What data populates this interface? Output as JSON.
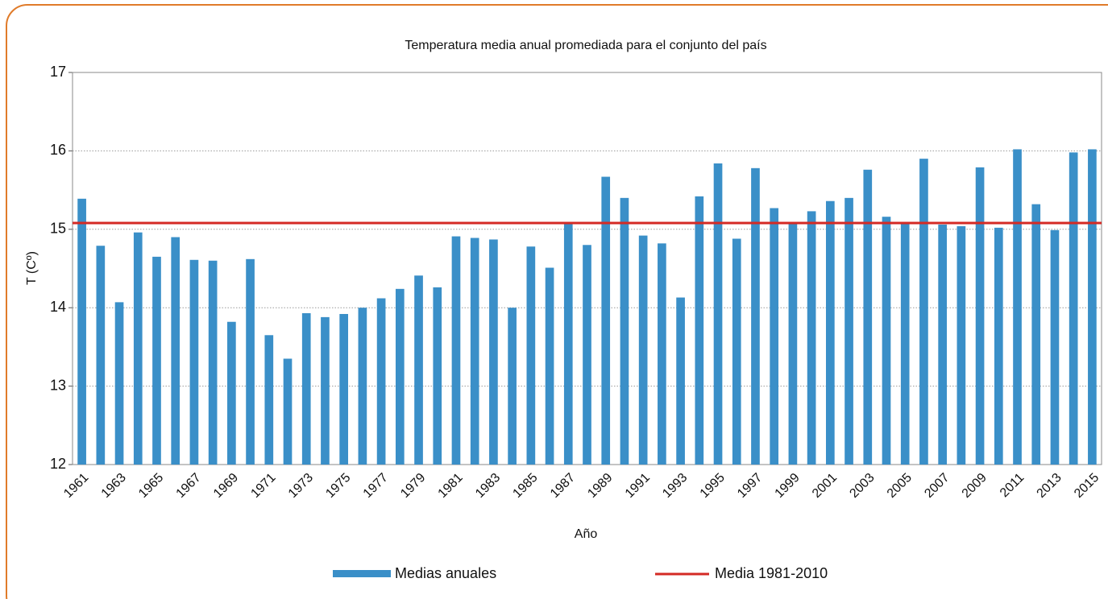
{
  "chart_data": {
    "type": "bar",
    "title": "Temperatura media anual promediada para el conjunto del país",
    "x_label": "Año",
    "y_label": "T (Cº)",
    "categories": [
      "1961",
      null,
      "1963",
      null,
      "1965",
      null,
      "1967",
      null,
      "1969",
      null,
      "1971",
      null,
      "1973",
      null,
      "1975",
      null,
      "1977",
      null,
      "1979",
      null,
      "1981",
      null,
      "1983",
      null,
      "1985",
      null,
      "1987",
      null,
      "1989",
      null,
      "1991",
      null,
      "1993",
      null,
      "1995",
      null,
      "1997",
      null,
      "1999",
      null,
      "2001",
      null,
      "2003",
      null,
      "2005",
      null,
      "2007",
      null,
      "2009",
      null,
      "2011",
      null,
      "2013",
      null,
      "2015"
    ],
    "series": [
      {
        "name": "Medias anuales",
        "color": "#3a8fc8",
        "values": [
          15.39,
          14.79,
          14.07,
          14.96,
          14.65,
          14.9,
          14.61,
          14.6,
          13.82,
          14.62,
          13.65,
          13.35,
          13.93,
          13.88,
          13.92,
          14.0,
          14.12,
          14.24,
          14.41,
          14.26,
          14.91,
          14.89,
          14.87,
          14.0,
          14.78,
          14.51,
          15.08,
          14.8,
          15.67,
          15.4,
          14.92,
          14.82,
          14.13,
          15.42,
          15.84,
          14.88,
          15.78,
          15.27,
          15.08,
          15.23,
          15.36,
          15.4,
          15.76,
          15.16,
          15.08,
          15.9,
          15.06,
          15.04,
          15.79,
          15.02,
          16.02,
          15.32,
          14.99,
          15.98,
          16.02
        ]
      }
    ],
    "reference_line": {
      "name": "Media 1981-2010",
      "color": "#d42a24",
      "value": 15.08
    },
    "ylim": [
      12,
      17
    ],
    "yticks": [
      12,
      13,
      14,
      15,
      16,
      17
    ],
    "grid": true
  }
}
